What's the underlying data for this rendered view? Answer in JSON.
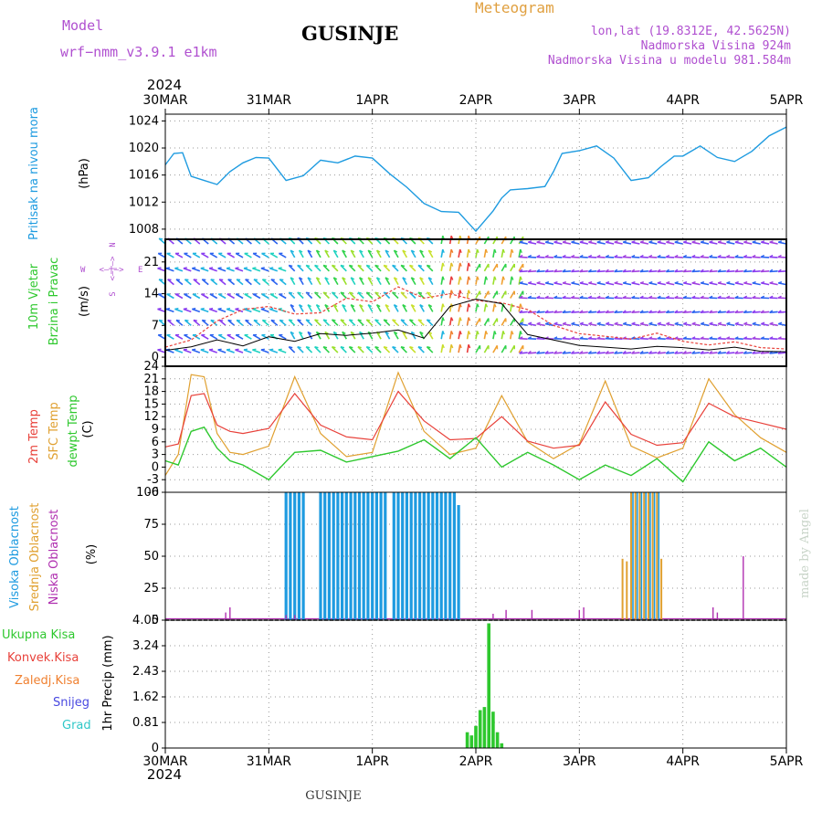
{
  "header": {
    "model_label": "Model",
    "model_name": "wrf−nmm_v3.9.1  e1km",
    "station": "GUSINJE",
    "meteogram": "Meteogram",
    "lonlat": "lon,lat (19.8312E, 42.5625N)",
    "elevation": "Nadmorska Visina 924m",
    "model_elevation": "Nadmorska Visina u modelu 981.584m",
    "year_top": "2024",
    "year_bottom": "2024",
    "footer_station": "GUSINJE",
    "signature": "made by Angel"
  },
  "colors": {
    "pressure": "#1e9be0",
    "temp": "#e8413a",
    "sfc_temp": "#e0a030",
    "dewpt": "#2ec82e",
    "high_cloud": "#1e9be0",
    "mid_cloud": "#e0a030",
    "low_cloud": "#b030b0",
    "precip": "#2ec82e",
    "conv": "#e8413a",
    "frz": "#f08030",
    "snow": "#4848e0",
    "hail": "#30c8c8",
    "wind_label": "#2ec82e",
    "compass": "#b050d0",
    "header_purple": "#b050d0",
    "header_gold": "#e0a040"
  },
  "time_axis": {
    "labels": [
      "30MAR",
      "31MAR",
      "1APR",
      "2APR",
      "3APR",
      "4APR",
      "5APR"
    ],
    "range_hours": [
      0,
      144
    ]
  },
  "chart_data": [
    {
      "type": "line",
      "ylabel": "(hPa)",
      "side_label": "Pritisak na nivou mora",
      "yticks": [
        1008,
        1012,
        1016,
        1020,
        1024
      ],
      "ylim": [
        1006.5,
        1025
      ],
      "grid": true,
      "series": [
        {
          "x": [
            0,
            2,
            4,
            6,
            9,
            12,
            15,
            18,
            21,
            24,
            28,
            32,
            36,
            40,
            44,
            48,
            52,
            56,
            60,
            64,
            68,
            72,
            76,
            78,
            80,
            82,
            84,
            88,
            90,
            92,
            96,
            100,
            104,
            108,
            112,
            115,
            118,
            120,
            124,
            128,
            132,
            136,
            140,
            144
          ],
          "values": [
            1017.5,
            1019.2,
            1019.3,
            1015.8,
            1015.2,
            1014.6,
            1016.5,
            1017.8,
            1018.6,
            1018.5,
            1015.2,
            1015.9,
            1018.2,
            1017.8,
            1018.8,
            1018.5,
            1016.2,
            1014.2,
            1011.8,
            1010.6,
            1010.5,
            1007.7,
            1010.7,
            1012.6,
            1013.8,
            1013.9,
            1014.0,
            1014.3,
            1016.5,
            1019.2,
            1019.6,
            1020.3,
            1018.5,
            1015.2,
            1015.6,
            1017.3,
            1018.8,
            1018.8,
            1020.3,
            1018.6,
            1018.0,
            1019.5,
            1021.8,
            1023.1
          ]
        }
      ]
    },
    {
      "type": "line",
      "ylabel": "(m/s)",
      "side_label_1": "10m Vjetar",
      "side_label_2": "Brzina i Pravac",
      "compass": [
        "N",
        "S",
        "W",
        "E",
        "<—|—>"
      ],
      "yticks": [
        0,
        7,
        14,
        21
      ],
      "ylim": [
        -2,
        26
      ],
      "grid": true,
      "wind_levels": [
        1,
        4,
        7,
        10,
        13,
        16,
        19,
        22,
        25
      ],
      "series": [
        {
          "name": "speed",
          "x": [
            0,
            6,
            12,
            18,
            24,
            30,
            36,
            42,
            48,
            54,
            60,
            66,
            72,
            78,
            84,
            90,
            96,
            102,
            108,
            114,
            120,
            126,
            132,
            138,
            144
          ],
          "values": [
            1.5,
            2.3,
            3.8,
            2.5,
            4.5,
            3.5,
            5.2,
            4.8,
            5.3,
            6.0,
            4.2,
            11.2,
            12.8,
            11.8,
            5.0,
            3.8,
            2.6,
            2.2,
            1.8,
            2.4,
            2.1,
            1.6,
            2.2,
            1.3,
            1.2
          ]
        },
        {
          "name": "gust",
          "x": [
            0,
            6,
            12,
            18,
            24,
            30,
            36,
            42,
            48,
            54,
            60,
            66,
            72,
            78,
            84,
            90,
            96,
            102,
            108,
            114,
            120,
            126,
            132,
            138,
            144
          ],
          "values": [
            2.2,
            3.8,
            8.0,
            10.5,
            11.2,
            9.5,
            9.8,
            13.0,
            12.2,
            15.5,
            13.0,
            14.0,
            12.5,
            12.0,
            10.5,
            7.0,
            5.2,
            4.6,
            4.0,
            5.3,
            3.5,
            2.7,
            3.4,
            2.1,
            1.8
          ]
        }
      ]
    },
    {
      "type": "line",
      "ylabel": "(C)",
      "side_labels": [
        "2m Temp",
        "SFC Temp",
        "dewpt Temp"
      ],
      "yticks": [
        -6,
        -3,
        0,
        3,
        6,
        9,
        12,
        15,
        18,
        21,
        24
      ],
      "ylim": [
        -6,
        24
      ],
      "grid": true,
      "series": [
        {
          "name": "2m Temp",
          "x": [
            0,
            3,
            6,
            9,
            12,
            15,
            18,
            24,
            30,
            36,
            42,
            48,
            54,
            60,
            66,
            72,
            78,
            84,
            90,
            96,
            102,
            108,
            114,
            120,
            126,
            132,
            138,
            144
          ],
          "values": [
            4.8,
            5.5,
            17.0,
            17.5,
            10.0,
            8.5,
            8.0,
            9.2,
            17.5,
            10.0,
            7.2,
            6.5,
            18.0,
            11.0,
            6.5,
            6.8,
            12.0,
            6.2,
            4.5,
            5.2,
            15.5,
            7.8,
            5.2,
            5.8,
            15.2,
            12.0,
            10.5,
            9.0
          ]
        },
        {
          "name": "SFC Temp",
          "x": [
            0,
            3,
            6,
            9,
            12,
            15,
            18,
            24,
            30,
            36,
            42,
            48,
            54,
            60,
            66,
            72,
            78,
            84,
            90,
            96,
            102,
            108,
            114,
            120,
            126,
            132,
            138,
            144
          ],
          "values": [
            -2.0,
            3.0,
            22.0,
            21.5,
            8.0,
            3.5,
            3.0,
            5.0,
            21.5,
            8.0,
            2.5,
            3.5,
            22.5,
            8.5,
            3.0,
            4.5,
            17.0,
            6.0,
            2.0,
            5.5,
            20.5,
            5.0,
            2.2,
            4.5,
            21.0,
            12.5,
            7.0,
            3.5
          ]
        },
        {
          "name": "dewpt Temp",
          "x": [
            0,
            3,
            6,
            9,
            12,
            15,
            18,
            24,
            30,
            36,
            42,
            48,
            54,
            60,
            66,
            72,
            78,
            84,
            90,
            96,
            102,
            108,
            114,
            120,
            126,
            132,
            138,
            144
          ],
          "values": [
            1.5,
            0.5,
            8.5,
            9.5,
            4.5,
            1.5,
            0.5,
            -3.0,
            3.5,
            4.0,
            1.2,
            2.5,
            3.8,
            6.5,
            2.0,
            7.0,
            0.0,
            3.5,
            0.5,
            -3.0,
            0.5,
            -2.0,
            2.0,
            -3.5,
            6.0,
            1.5,
            4.5,
            0.0
          ]
        }
      ]
    },
    {
      "type": "bar",
      "ylabel": "(%)",
      "side_labels": [
        "Visoka Oblacnost",
        "Srednja Oblacnost",
        "Niska Oblacnost"
      ],
      "yticks": [
        0,
        25,
        50,
        75,
        100
      ],
      "ylim": [
        0,
        100
      ],
      "grid": true,
      "high_cloud_hours": [
        28,
        29,
        30,
        31,
        32,
        36,
        37,
        38,
        39,
        40,
        41,
        42,
        43,
        44,
        45,
        46,
        47,
        48,
        49,
        50,
        51,
        53,
        54,
        55,
        56,
        57,
        58,
        59,
        60,
        61,
        62,
        63,
        64,
        65,
        66,
        67
      ],
      "high_cloud_value": 100,
      "high_cloud_last": {
        "hour": 68,
        "value": 90
      },
      "mid_cloud": [
        {
          "hour": 106,
          "value": 48
        },
        {
          "hour": 107,
          "value": 46
        },
        {
          "hour": 108,
          "value": 100
        },
        {
          "hour": 109,
          "value": 100
        },
        {
          "hour": 110,
          "value": 100
        },
        {
          "hour": 111,
          "value": 100
        },
        {
          "hour": 112,
          "value": 100
        },
        {
          "hour": 113,
          "value": 100
        },
        {
          "hour": 114,
          "value": 100
        },
        {
          "hour": 115,
          "value": 48
        }
      ],
      "low_cloud": [
        {
          "hour": 14,
          "value": 6
        },
        {
          "hour": 15,
          "value": 10
        },
        {
          "hour": 28,
          "value": 4
        },
        {
          "hour": 30,
          "value": 4
        },
        {
          "hour": 76,
          "value": 5
        },
        {
          "hour": 79,
          "value": 8
        },
        {
          "hour": 85,
          "value": 8
        },
        {
          "hour": 96,
          "value": 8
        },
        {
          "hour": 97,
          "value": 10
        },
        {
          "hour": 127,
          "value": 10
        },
        {
          "hour": 128,
          "value": 6
        },
        {
          "hour": 134,
          "value": 50
        }
      ]
    },
    {
      "type": "bar",
      "ylabel": "1hr Precip (mm)",
      "side_labels": [
        "Ukupna  Kisa",
        "Konvek.Kisa",
        "Zaledj.Kisa",
        "Snijeg",
        "Grad"
      ],
      "yticks": [
        0,
        0.81,
        1.62,
        2.43,
        3.24,
        4.05
      ],
      "ylim": [
        0,
        4.05
      ],
      "grid": true,
      "bars": [
        {
          "hour": 70,
          "value": 0.5
        },
        {
          "hour": 71,
          "value": 0.4
        },
        {
          "hour": 72,
          "value": 0.7
        },
        {
          "hour": 73,
          "value": 1.2
        },
        {
          "hour": 74,
          "value": 1.3
        },
        {
          "hour": 75,
          "value": 3.95
        },
        {
          "hour": 76,
          "value": 1.15
        },
        {
          "hour": 77,
          "value": 0.5
        },
        {
          "hour": 78,
          "value": 0.15
        }
      ]
    }
  ]
}
